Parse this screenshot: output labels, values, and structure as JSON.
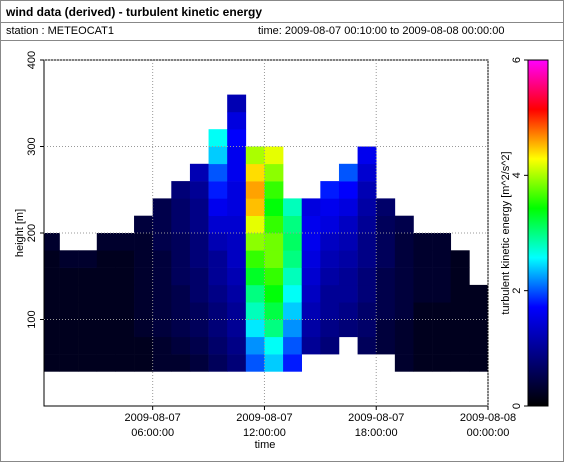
{
  "header": {
    "title": "wind data (derived) - turbulent kinetic energy",
    "station": "station : METEOCAT1",
    "time": "time: 2009-08-07 00:10:00 to 2009-08-08 00:00:00"
  },
  "chart_data": {
    "type": "heatmap",
    "x_label": "time",
    "y_label": "height [m]",
    "colorbar_label": "turbulent kinetic energy [m^2/s^2]",
    "xlim": [
      "2009-08-07 00:10:00",
      "2009-08-08 00:00:00"
    ],
    "xticks": [
      "2009-08-07 06:00:00",
      "2009-08-07 12:00:00",
      "2009-08-07 18:00:00",
      "2009-08-08 00:00:00"
    ],
    "ylim": [
      0,
      400
    ],
    "yticks": [
      100,
      200,
      300,
      400
    ],
    "grid": true,
    "clim": [
      0,
      6
    ],
    "cticks": [
      0,
      2,
      4,
      6
    ],
    "colormap": [
      "#000000",
      "#000080",
      "#0000ff",
      "#00ffff",
      "#00ff00",
      "#ffff00",
      "#ff0000",
      "#ff00ff"
    ],
    "x_bins": [
      "2009-08-07 00:10:00",
      "2009-08-07 01:00:00",
      "2009-08-07 02:00:00",
      "2009-08-07 03:00:00",
      "2009-08-07 04:00:00",
      "2009-08-07 05:00:00",
      "2009-08-07 06:00:00",
      "2009-08-07 07:00:00",
      "2009-08-07 08:00:00",
      "2009-08-07 09:00:00",
      "2009-08-07 10:00:00",
      "2009-08-07 11:00:00",
      "2009-08-07 12:00:00",
      "2009-08-07 13:00:00",
      "2009-08-07 14:00:00",
      "2009-08-07 15:00:00",
      "2009-08-07 16:00:00",
      "2009-08-07 17:00:00",
      "2009-08-07 18:00:00",
      "2009-08-07 19:00:00",
      "2009-08-07 20:00:00",
      "2009-08-07 21:00:00",
      "2009-08-07 22:00:00",
      "2009-08-07 23:00:00",
      "2009-08-08 00:00:00"
    ],
    "y_bins": [
      0,
      20,
      40,
      60,
      80,
      100,
      120,
      140,
      160,
      180,
      200,
      220,
      240,
      260,
      280,
      300,
      320,
      340,
      360,
      380,
      400
    ],
    "z": [
      [
        null,
        null,
        0.2,
        0.2,
        0.2,
        0.2,
        0.2,
        0.2,
        0.2,
        0.3,
        null,
        null,
        null,
        null,
        null,
        null,
        null,
        null,
        null,
        null
      ],
      [
        null,
        null,
        0.2,
        0.2,
        0.2,
        0.2,
        0.2,
        0.2,
        0.3,
        null,
        null,
        null,
        null,
        null,
        null,
        null,
        null,
        null,
        null,
        null
      ],
      [
        null,
        null,
        0.2,
        0.2,
        0.2,
        0.2,
        0.2,
        0.2,
        0.3,
        null,
        null,
        null,
        null,
        null,
        null,
        null,
        null,
        null,
        null,
        null
      ],
      [
        null,
        null,
        0.2,
        0.2,
        0.2,
        0.2,
        0.2,
        0.2,
        0.2,
        0.3,
        null,
        null,
        null,
        null,
        null,
        null,
        null,
        null,
        null,
        null
      ],
      [
        null,
        null,
        0.2,
        0.2,
        0.2,
        0.2,
        0.2,
        0.2,
        0.2,
        0.3,
        null,
        null,
        null,
        null,
        null,
        null,
        null,
        null,
        null,
        null
      ],
      [
        null,
        null,
        0.2,
        0.2,
        0.3,
        0.3,
        0.3,
        0.3,
        0.3,
        0.3,
        0.4,
        null,
        null,
        null,
        null,
        null,
        null,
        null,
        null,
        null
      ],
      [
        null,
        null,
        0.3,
        0.3,
        0.4,
        0.4,
        0.4,
        0.4,
        0.4,
        0.5,
        0.5,
        0.5,
        null,
        null,
        null,
        null,
        null,
        null,
        null,
        null
      ],
      [
        null,
        null,
        0.3,
        0.4,
        0.5,
        0.5,
        0.5,
        0.6,
        0.6,
        0.6,
        0.7,
        0.7,
        0.8,
        null,
        null,
        null,
        null,
        null,
        null,
        null
      ],
      [
        null,
        null,
        0.4,
        0.5,
        0.6,
        0.6,
        0.7,
        0.7,
        0.8,
        0.8,
        0.9,
        0.9,
        1,
        1.2,
        null,
        null,
        null,
        null,
        null,
        null
      ],
      [
        null,
        null,
        0.6,
        0.7,
        0.8,
        0.8,
        0.9,
        1,
        1,
        1.2,
        1.4,
        1.6,
        1.8,
        2,
        2.4,
        2.6,
        null,
        null,
        null,
        null
      ],
      [
        null,
        null,
        0.8,
        0.9,
        1,
        1,
        1.1,
        1.2,
        1.3,
        1.3,
        1.4,
        1.5,
        1.5,
        1.6,
        1.6,
        1.7,
        1.5,
        1.2,
        null,
        null
      ],
      [
        null,
        null,
        2,
        2.2,
        2.5,
        2.8,
        3,
        3.3,
        3.6,
        3.9,
        4.2,
        4.5,
        4.6,
        4.4,
        4,
        null,
        null,
        null,
        null,
        null
      ],
      [
        null,
        null,
        2.4,
        2.6,
        3,
        3.2,
        3.4,
        3.6,
        3.8,
        3.8,
        3.6,
        3.4,
        3.6,
        3.9,
        4.2,
        null,
        null,
        null,
        null,
        null
      ],
      [
        null,
        null,
        1.8,
        2,
        2.2,
        2.4,
        2.6,
        2.8,
        3,
        3.1,
        3,
        2.8,
        null,
        null,
        null,
        null,
        null,
        null,
        null,
        null
      ],
      [
        null,
        null,
        null,
        1,
        1.1,
        1.2,
        1.3,
        1.4,
        1.5,
        1.6,
        1.6,
        1.5,
        null,
        null,
        null,
        null,
        null,
        null,
        null,
        null
      ],
      [
        null,
        null,
        null,
        0.8,
        0.9,
        1,
        1,
        1.1,
        1.2,
        1.3,
        1.5,
        1.6,
        1.8,
        null,
        null,
        null,
        null,
        null,
        null,
        null
      ],
      [
        null,
        null,
        null,
        null,
        0.8,
        0.9,
        1,
        1,
        1.1,
        1.2,
        1.3,
        1.5,
        1.7,
        2,
        null,
        null,
        null,
        null,
        null,
        null
      ],
      [
        null,
        null,
        null,
        0.6,
        0.7,
        0.7,
        0.8,
        0.8,
        0.9,
        0.9,
        1,
        1.1,
        1.2,
        1.4,
        1.6,
        null,
        null,
        null,
        null,
        null
      ],
      [
        null,
        null,
        null,
        0.4,
        0.4,
        0.5,
        0.5,
        0.5,
        0.6,
        0.6,
        0.6,
        0.7,
        null,
        null,
        null,
        null,
        null,
        null,
        null,
        null
      ],
      [
        null,
        null,
        0.3,
        0.3,
        0.3,
        0.4,
        0.4,
        0.4,
        0.4,
        0.4,
        0.5,
        null,
        null,
        null,
        null,
        null,
        null,
        null,
        null,
        null
      ],
      [
        null,
        null,
        0.2,
        0.2,
        0.2,
        0.2,
        0.3,
        0.3,
        0.3,
        0.3,
        null,
        null,
        null,
        null,
        null,
        null,
        null,
        null,
        null,
        null
      ],
      [
        null,
        null,
        0.2,
        0.2,
        0.2,
        0.2,
        0.3,
        0.3,
        0.3,
        0.3,
        null,
        null,
        null,
        null,
        null,
        null,
        null,
        null,
        null,
        null
      ],
      [
        null,
        null,
        0.2,
        0.2,
        0.2,
        0.2,
        0.2,
        0.2,
        0.2,
        null,
        null,
        null,
        null,
        null,
        null,
        null,
        null,
        null,
        null,
        null
      ],
      [
        null,
        null,
        0.2,
        0.2,
        0.2,
        0.2,
        0.2,
        null,
        null,
        null,
        null,
        null,
        null,
        null,
        null,
        null,
        null,
        null,
        null,
        null
      ]
    ]
  }
}
